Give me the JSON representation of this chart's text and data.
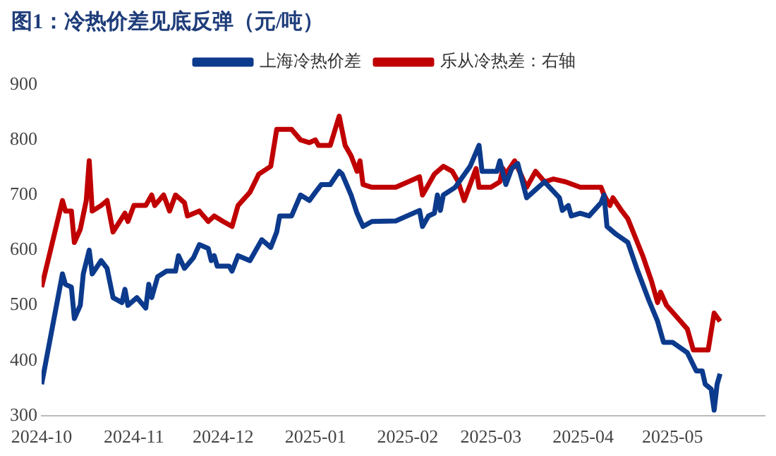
{
  "chart_data": {
    "type": "line",
    "title": "图1：冷热价差见底反弹（元/吨）",
    "xlim": [
      "2024-10-01",
      "2025-06-01"
    ],
    "xticks": [
      "2024-10",
      "2024-11",
      "2024-12",
      "2025-01",
      "2025-02",
      "2025-03",
      "2025-04",
      "2025-05"
    ],
    "ylim": [
      300,
      900
    ],
    "yticks": [
      300,
      400,
      500,
      600,
      700,
      800,
      900
    ],
    "grid": false,
    "legend": "top",
    "marker": "none",
    "line_style": "solid",
    "series": [
      {
        "name": "上海冷热价差",
        "color": "#0c3a8c",
        "x": [
          "2024-10-01",
          "2024-10-08",
          "2024-10-09",
          "2024-10-11",
          "2024-10-12",
          "2024-10-14",
          "2024-10-15",
          "2024-10-17",
          "2024-10-18",
          "2024-10-21",
          "2024-10-23",
          "2024-10-25",
          "2024-10-28",
          "2024-10-29",
          "2024-10-30",
          "2024-11-02",
          "2024-11-05",
          "2024-11-06",
          "2024-11-07",
          "2024-11-09",
          "2024-11-12",
          "2024-11-15",
          "2024-11-16",
          "2024-11-18",
          "2024-11-21",
          "2024-11-23",
          "2024-11-26",
          "2024-11-27",
          "2024-11-28",
          "2024-11-29",
          "2024-12-03",
          "2024-12-04",
          "2024-12-06",
          "2024-12-10",
          "2024-12-14",
          "2024-12-17",
          "2024-12-19",
          "2024-12-20",
          "2024-12-24",
          "2024-12-27",
          "2024-12-30",
          "2025-01-01",
          "2025-01-03",
          "2025-01-06",
          "2025-01-09",
          "2025-01-10",
          "2025-01-13",
          "2025-01-15",
          "2025-01-17",
          "2025-01-20",
          "2025-01-28",
          "2025-02-05",
          "2025-02-06",
          "2025-02-08",
          "2025-02-10",
          "2025-02-11",
          "2025-02-12",
          "2025-02-13",
          "2025-02-17",
          "2025-02-22",
          "2025-02-25",
          "2025-02-26",
          "2025-03-03",
          "2025-03-04",
          "2025-03-06",
          "2025-03-08",
          "2025-03-10",
          "2025-03-13",
          "2025-03-19",
          "2025-03-24",
          "2025-03-25",
          "2025-03-27",
          "2025-03-28",
          "2025-03-31",
          "2025-04-03",
          "2025-04-07",
          "2025-04-08",
          "2025-04-09",
          "2025-04-12",
          "2025-04-16",
          "2025-04-19",
          "2025-04-23",
          "2025-04-26",
          "2025-04-28",
          "2025-05-01",
          "2025-05-06",
          "2025-05-09",
          "2025-05-11",
          "2025-05-12",
          "2025-05-14",
          "2025-05-15",
          "2025-05-16",
          "2025-05-17"
        ],
        "values": [
          357,
          557,
          538,
          533,
          476,
          500,
          557,
          600,
          557,
          581,
          567,
          514,
          505,
          529,
          500,
          514,
          495,
          538,
          514,
          552,
          562,
          562,
          590,
          567,
          586,
          610,
          603,
          581,
          590,
          571,
          571,
          562,
          590,
          581,
          619,
          605,
          633,
          662,
          662,
          700,
          690,
          705,
          719,
          719,
          743,
          738,
          700,
          667,
          643,
          652,
          653,
          672,
          643,
          662,
          667,
          700,
          672,
          700,
          714,
          752,
          790,
          743,
          743,
          762,
          719,
          748,
          757,
          695,
          724,
          695,
          672,
          681,
          662,
          667,
          662,
          686,
          700,
          643,
          629,
          614,
          567,
          510,
          471,
          433,
          433,
          414,
          381,
          381,
          357,
          348,
          310,
          357,
          376
        ]
      },
      {
        "name": "乐从冷热差：右轴",
        "color": "#c00000",
        "x": [
          "2024-10-01",
          "2024-10-08",
          "2024-10-09",
          "2024-10-11",
          "2024-10-12",
          "2024-10-14",
          "2024-10-16",
          "2024-10-17",
          "2024-10-18",
          "2024-10-21",
          "2024-10-23",
          "2024-10-25",
          "2024-10-29",
          "2024-10-30",
          "2024-11-01",
          "2024-11-05",
          "2024-11-07",
          "2024-11-08",
          "2024-11-11",
          "2024-11-13",
          "2024-11-15",
          "2024-11-18",
          "2024-11-19",
          "2024-11-23",
          "2024-11-26",
          "2024-11-28",
          "2024-12-01",
          "2024-12-04",
          "2024-12-06",
          "2024-12-10",
          "2024-12-13",
          "2024-12-17",
          "2024-12-19",
          "2024-12-24",
          "2024-12-27",
          "2024-12-30",
          "2025-01-01",
          "2025-01-02",
          "2025-01-06",
          "2025-01-09",
          "2025-01-11",
          "2025-01-13",
          "2025-01-15",
          "2025-01-16",
          "2025-01-17",
          "2025-01-20",
          "2025-01-28",
          "2025-02-05",
          "2025-02-06",
          "2025-02-10",
          "2025-02-13",
          "2025-02-16",
          "2025-02-18",
          "2025-02-20",
          "2025-02-22",
          "2025-02-24",
          "2025-02-25",
          "2025-03-01",
          "2025-03-04",
          "2025-03-05",
          "2025-03-06",
          "2025-03-09",
          "2025-03-13",
          "2025-03-16",
          "2025-03-19",
          "2025-03-22",
          "2025-03-26",
          "2025-03-31",
          "2025-04-07",
          "2025-04-08",
          "2025-04-10",
          "2025-04-11",
          "2025-04-14",
          "2025-04-16",
          "2025-04-21",
          "2025-04-24",
          "2025-04-26",
          "2025-04-27",
          "2025-04-29",
          "2025-05-06",
          "2025-05-08",
          "2025-05-13",
          "2025-05-15",
          "2025-05-17"
        ],
        "values": [
          533,
          690,
          671,
          671,
          614,
          638,
          690,
          762,
          671,
          681,
          690,
          633,
          667,
          652,
          681,
          681,
          700,
          681,
          700,
          671,
          700,
          686,
          662,
          671,
          652,
          662,
          652,
          643,
          681,
          705,
          738,
          752,
          819,
          819,
          800,
          795,
          800,
          790,
          790,
          843,
          790,
          771,
          743,
          762,
          719,
          714,
          714,
          733,
          700,
          738,
          752,
          743,
          724,
          690,
          719,
          748,
          714,
          714,
          724,
          748,
          738,
          762,
          714,
          743,
          724,
          729,
          724,
          714,
          714,
          700,
          681,
          695,
          671,
          657,
          590,
          543,
          505,
          524,
          500,
          457,
          419,
          419,
          486,
          471
        ]
      }
    ]
  }
}
